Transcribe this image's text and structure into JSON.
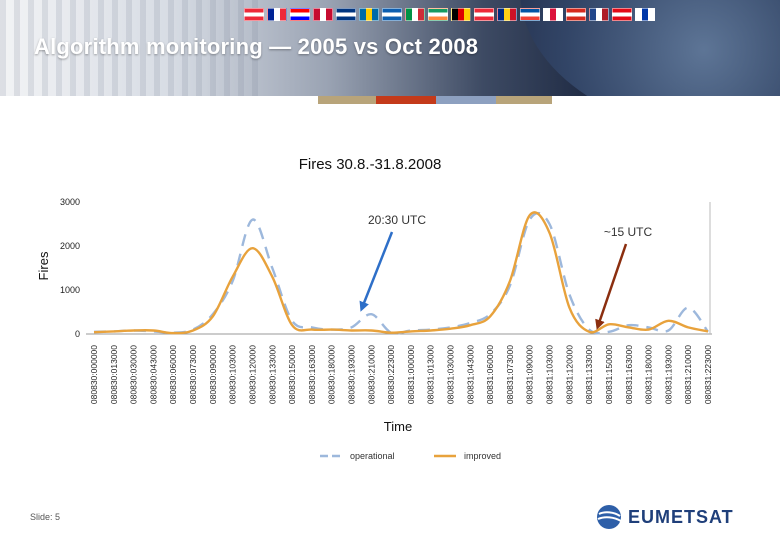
{
  "slide": {
    "title": "Algorithm monitoring — 2005 vs Oct 2008",
    "footer": "Slide: 5",
    "logo_text": "EUMETSAT",
    "flags": [
      [
        "#ed2939",
        "#ffffff",
        "#ed2939"
      ],
      [
        "#002395",
        "#ffffff",
        "#ed2939"
      ],
      [
        "#ff0000",
        "#ffffff",
        "#0000ff"
      ],
      [
        "#c60c30",
        "#ffffff",
        "#c60c30"
      ],
      [
        "#003580",
        "#ffffff",
        "#003580"
      ],
      [
        "#006aa7",
        "#fecc00",
        "#006aa7"
      ],
      [
        "#0d5eaf",
        "#ffffff",
        "#0d5eaf"
      ],
      [
        "#009246",
        "#ffffff",
        "#ce2b37"
      ],
      [
        "#169b62",
        "#ffffff",
        "#ff883e"
      ],
      [
        "#000000",
        "#dd0000",
        "#ffce00"
      ],
      [
        "#ed2939",
        "#ffffff",
        "#ed2939"
      ],
      [
        "#002b7f",
        "#fcd116",
        "#ce1126"
      ],
      [
        "#0055a4",
        "#ffffff",
        "#ef4135"
      ],
      [
        "#ffffff",
        "#dc143c",
        "#ffffff"
      ],
      [
        "#d52b1e",
        "#ffffff",
        "#d52b1e"
      ],
      [
        "#21468b",
        "#ffffff",
        "#ae1c28"
      ],
      [
        "#e30a17",
        "#ffffff",
        "#e30a17"
      ],
      [
        "#ffffff",
        "#0038a8",
        "#ffffff"
      ]
    ],
    "accent_colors": [
      "#b8a47a",
      "#c43a1a",
      "#8da0c0",
      "#b8a47a"
    ]
  },
  "chart_data": {
    "type": "line",
    "title": "Fires 30.8.-31.8.2008",
    "xlabel": "Time",
    "ylabel": "Fires",
    "ylim": [
      0,
      3000
    ],
    "yticks": [
      0,
      1000,
      2000,
      3000
    ],
    "grid": false,
    "legend": "bottom",
    "x": [
      "080830:000000",
      "080830:013000",
      "080830:030000",
      "080830:043000",
      "080830:060000",
      "080830:073000",
      "080830:090000",
      "080830:103000",
      "080830:120000",
      "080830:133000",
      "080830:150000",
      "080830:163000",
      "080830:180000",
      "080830:193000",
      "080830:210000",
      "080830:223000",
      "080831:000000",
      "080831:013000",
      "080831:030000",
      "080831:043000",
      "080831:060000",
      "080831:073000",
      "080831:090000",
      "080831:103000",
      "080831:120000",
      "080831:133000",
      "080831:150000",
      "080831:163000",
      "080831:180000",
      "080831:193000",
      "080831:210000",
      "080831:223000"
    ],
    "series": [
      {
        "name": "operational",
        "color": "#9db8dc",
        "dash": true,
        "values": [
          50,
          60,
          80,
          60,
          30,
          100,
          450,
          1200,
          2600,
          1500,
          300,
          150,
          100,
          150,
          450,
          30,
          80,
          100,
          150,
          250,
          450,
          1100,
          2600,
          2500,
          900,
          100,
          50,
          200,
          150,
          80,
          600,
          50
        ]
      },
      {
        "name": "improved",
        "color": "#e8a23c",
        "dash": false,
        "values": [
          40,
          60,
          80,
          80,
          20,
          80,
          400,
          1300,
          1950,
          1300,
          200,
          100,
          100,
          80,
          80,
          30,
          60,
          80,
          120,
          200,
          400,
          1200,
          2700,
          2300,
          600,
          50,
          220,
          150,
          100,
          300,
          150,
          60
        ]
      }
    ],
    "annotations": [
      {
        "text": "20:30 UTC",
        "arrow_color": "#2e6fc8",
        "points_to_x": "080830:210000"
      },
      {
        "text": "~15 UTC",
        "arrow_color": "#8b2e0f",
        "points_to_x": "080831:150000"
      }
    ]
  }
}
